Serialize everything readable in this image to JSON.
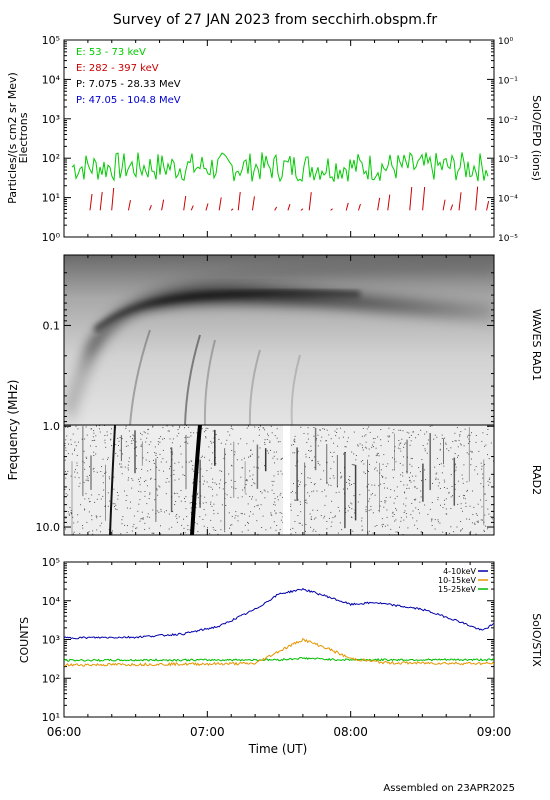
{
  "title": "Survey of 27 JAN 2023 from secchirh.obspm.fr",
  "footer": "Assembled on 23APR2025",
  "colors": {
    "electrons_low": "#00cc00",
    "electrons_high": "#cc0000",
    "protons_low": "#000000",
    "protons_high": "#0000cc",
    "stix_4_10": "#0000aa",
    "stix_10_15": "#e69500",
    "stix_15_25": "#00bb00"
  },
  "x_axis": {
    "label": "Time (UT)",
    "ticks": [
      "06:00",
      "07:00",
      "08:00",
      "09:00"
    ],
    "range": [
      "06:00",
      "09:00"
    ]
  },
  "chart_data": [
    {
      "type": "line",
      "name": "SolO/EPD",
      "ylabel_left": "Particles/(s cm2 sr Mev)",
      "ylabel_left2": "Electrons",
      "ylabel_right": "SolO/EPD (ions)",
      "yscale": "log",
      "ylim_left": [
        1,
        100000
      ],
      "ylim_right": [
        1e-05,
        1.0
      ],
      "yticks_left": [
        "10⁰",
        "10¹",
        "10²",
        "10³",
        "10⁴",
        "10⁵"
      ],
      "yticks_right": [
        "10⁻⁵",
        "10⁻⁴",
        "10⁻³",
        "10⁻²",
        "10⁻¹",
        "10⁰"
      ],
      "legend_position": "top-left",
      "series": [
        {
          "name": "E: 53 - 73 keV",
          "level": 60,
          "spread": 40,
          "continuous": true
        },
        {
          "name": "E: 282 - 397 keV",
          "level": 5,
          "spread": 5,
          "continuous": false
        },
        {
          "name": "P: 7.075 - 28.33 MeV",
          "level": null
        },
        {
          "name": "P: 47.05 - 104.8 MeV",
          "level": null
        }
      ]
    },
    {
      "type": "heatmap",
      "name": "WAVES RAD1 / RAD2",
      "ylabel": "Frequency (MHz)",
      "yscale": "log",
      "ylim": [
        12,
        0.02
      ],
      "yticks": [
        "0.1",
        "1.0",
        "10.0"
      ],
      "right_labels": [
        "WAVES RAD1",
        "RAD2"
      ]
    },
    {
      "type": "line",
      "name": "SolO/STIX",
      "ylabel_left": "COUNTS",
      "ylabel_right": "SolO/STIX",
      "yscale": "log",
      "ylim": [
        10,
        100000
      ],
      "yticks": [
        "10¹",
        "10²",
        "10³",
        "10⁴",
        "10⁵"
      ],
      "legend_position": "top-right",
      "series": [
        {
          "name": "4-10keV",
          "x": [
            "06:00",
            "06:30",
            "06:50",
            "07:05",
            "07:20",
            "07:30",
            "07:40",
            "07:50",
            "08:00",
            "08:10",
            "08:30",
            "08:45",
            "08:55",
            "09:00"
          ],
          "values": [
            1100,
            1150,
            1400,
            2200,
            6000,
            15000,
            20000,
            13000,
            8000,
            9000,
            6000,
            3000,
            1700,
            2500
          ]
        },
        {
          "name": "10-15keV",
          "x": [
            "06:00",
            "07:20",
            "07:30",
            "07:40",
            "07:50",
            "08:00",
            "08:15",
            "09:00"
          ],
          "values": [
            220,
            240,
            500,
            1000,
            600,
            320,
            250,
            240
          ]
        },
        {
          "name": "15-25keV",
          "x": [
            "06:00",
            "07:30",
            "07:40",
            "07:55",
            "09:00"
          ],
          "values": [
            290,
            300,
            330,
            300,
            300
          ]
        }
      ]
    }
  ]
}
